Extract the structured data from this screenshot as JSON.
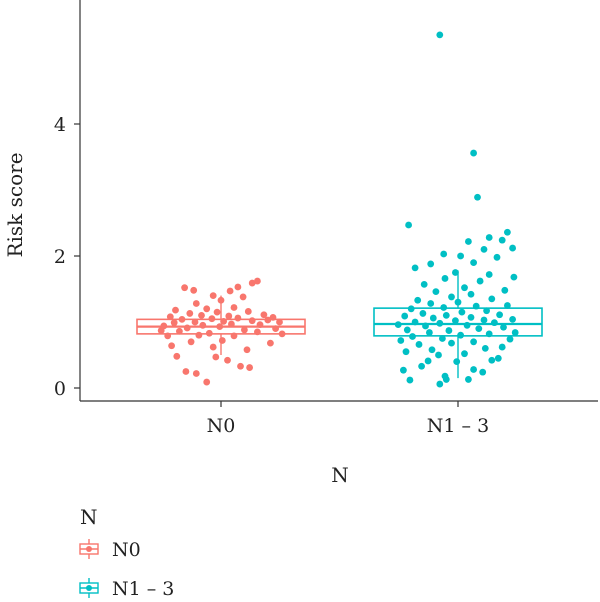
{
  "chart_data": {
    "type": "boxplot",
    "title": "",
    "xlabel": "N",
    "ylabel": "Risk score",
    "categories": [
      "N0",
      "N1 – 3"
    ],
    "y_ticks": [
      0,
      2,
      4
    ],
    "ylim": [
      -0.2,
      5.9
    ],
    "grid": false,
    "legend": {
      "title": "N",
      "position": "bottom-left",
      "entries": [
        "N0",
        "N1 – 3"
      ]
    },
    "colors": {
      "N0": "#F8766D",
      "N1 – 3": "#00BFC4"
    },
    "series": [
      {
        "name": "N0",
        "box": {
          "q1": 0.82,
          "median": 0.93,
          "q3": 1.04,
          "whisker_low": 0.5,
          "whisker_high": 1.4
        },
        "points": [
          [
            0.23,
            0.25
          ],
          [
            0.31,
            0.22
          ],
          [
            0.39,
            0.09
          ],
          [
            0.65,
            0.33
          ],
          [
            0.72,
            0.31
          ],
          [
            0.16,
            0.48
          ],
          [
            0.46,
            0.47
          ],
          [
            0.55,
            0.42
          ],
          [
            0.44,
            0.62
          ],
          [
            0.7,
            0.58
          ],
          [
            0.12,
            0.64
          ],
          [
            0.27,
            0.7
          ],
          [
            0.51,
            0.72
          ],
          [
            0.88,
            0.68
          ],
          [
            0.6,
            0.79
          ],
          [
            0.33,
            0.8
          ],
          [
            0.09,
            0.79
          ],
          [
            0.78,
            0.85
          ],
          [
            0.18,
            0.86
          ],
          [
            0.41,
            0.83
          ],
          [
            0.68,
            0.88
          ],
          [
            0.24,
            0.91
          ],
          [
            0.49,
            0.93
          ],
          [
            0.92,
            0.9
          ],
          [
            0.06,
            0.94
          ],
          [
            0.36,
            0.95
          ],
          [
            0.58,
            0.97
          ],
          [
            0.8,
            0.96
          ],
          [
            0.14,
            0.99
          ],
          [
            0.3,
            1.0
          ],
          [
            0.52,
            1.01
          ],
          [
            0.74,
            1.02
          ],
          [
            0.86,
            1.03
          ],
          [
            0.2,
            1.04
          ],
          [
            0.43,
            1.05
          ],
          [
            0.63,
            1.06
          ],
          [
            0.11,
            1.08
          ],
          [
            0.35,
            1.1
          ],
          [
            0.56,
            1.09
          ],
          [
            0.83,
            1.11
          ],
          [
            0.26,
            1.13
          ],
          [
            0.47,
            1.15
          ],
          [
            0.71,
            1.16
          ],
          [
            0.15,
            1.18
          ],
          [
            0.39,
            1.2
          ],
          [
            0.6,
            1.22
          ],
          [
            0.31,
            1.28
          ],
          [
            0.5,
            1.33
          ],
          [
            0.67,
            1.38
          ],
          [
            0.44,
            1.4
          ],
          [
            0.57,
            1.47
          ],
          [
            0.63,
            1.53
          ],
          [
            0.74,
            1.59
          ],
          [
            0.78,
            1.62
          ],
          [
            0.29,
            1.48
          ],
          [
            0.22,
            1.52
          ],
          [
            0.95,
            1.0
          ],
          [
            0.9,
            1.07
          ],
          [
            0.04,
            0.87
          ],
          [
            0.97,
            0.82
          ]
        ]
      },
      {
        "name": "N1 – 3",
        "box": {
          "q1": 0.79,
          "median": 0.97,
          "q3": 1.21,
          "whisker_low": 0.15,
          "whisker_high": 1.78
        },
        "points": [
          [
            0.36,
            0.06
          ],
          [
            0.41,
            0.13
          ],
          [
            0.13,
            0.12
          ],
          [
            0.58,
            0.13
          ],
          [
            0.4,
            0.18
          ],
          [
            0.08,
            0.27
          ],
          [
            0.62,
            0.28
          ],
          [
            0.69,
            0.24
          ],
          [
            0.22,
            0.33
          ],
          [
            0.27,
            0.41
          ],
          [
            0.49,
            0.4
          ],
          [
            0.76,
            0.42
          ],
          [
            0.81,
            0.45
          ],
          [
            0.35,
            0.5
          ],
          [
            0.1,
            0.55
          ],
          [
            0.3,
            0.58
          ],
          [
            0.55,
            0.52
          ],
          [
            0.71,
            0.6
          ],
          [
            0.84,
            0.62
          ],
          [
            0.2,
            0.66
          ],
          [
            0.45,
            0.68
          ],
          [
            0.62,
            0.7
          ],
          [
            0.06,
            0.72
          ],
          [
            0.38,
            0.75
          ],
          [
            0.9,
            0.74
          ],
          [
            0.15,
            0.78
          ],
          [
            0.52,
            0.8
          ],
          [
            0.74,
            0.82
          ],
          [
            0.28,
            0.84
          ],
          [
            0.94,
            0.84
          ],
          [
            0.11,
            0.88
          ],
          [
            0.43,
            0.87
          ],
          [
            0.66,
            0.9
          ],
          [
            0.85,
            0.92
          ],
          [
            0.25,
            0.94
          ],
          [
            0.57,
            0.95
          ],
          [
            0.04,
            0.96
          ],
          [
            0.36,
            0.98
          ],
          [
            0.78,
            0.99
          ],
          [
            0.17,
            1.0
          ],
          [
            0.48,
            1.02
          ],
          [
            0.7,
            1.03
          ],
          [
            0.92,
            1.04
          ],
          [
            0.31,
            1.06
          ],
          [
            0.6,
            1.07
          ],
          [
            0.09,
            1.09
          ],
          [
            0.41,
            1.1
          ],
          [
            0.82,
            1.11
          ],
          [
            0.23,
            1.13
          ],
          [
            0.53,
            1.15
          ],
          [
            0.72,
            1.17
          ],
          [
            0.14,
            1.2
          ],
          [
            0.39,
            1.22
          ],
          [
            0.64,
            1.24
          ],
          [
            0.88,
            1.25
          ],
          [
            0.29,
            1.28
          ],
          [
            0.5,
            1.3
          ],
          [
            0.19,
            1.33
          ],
          [
            0.76,
            1.35
          ],
          [
            0.45,
            1.38
          ],
          [
            0.6,
            1.42
          ],
          [
            0.33,
            1.46
          ],
          [
            0.86,
            1.48
          ],
          [
            0.55,
            1.52
          ],
          [
            0.24,
            1.57
          ],
          [
            0.67,
            1.62
          ],
          [
            0.4,
            1.66
          ],
          [
            0.93,
            1.68
          ],
          [
            0.74,
            1.72
          ],
          [
            0.48,
            1.75
          ],
          [
            0.17,
            1.82
          ],
          [
            0.29,
            1.88
          ],
          [
            0.62,
            1.9
          ],
          [
            0.8,
            1.98
          ],
          [
            0.52,
            2.0
          ],
          [
            0.39,
            2.03
          ],
          [
            0.7,
            2.1
          ],
          [
            0.92,
            2.12
          ],
          [
            0.58,
            2.22
          ],
          [
            0.84,
            2.24
          ],
          [
            0.74,
            2.28
          ],
          [
            0.88,
            2.36
          ],
          [
            0.12,
            2.47
          ],
          [
            0.65,
            2.89
          ],
          [
            0.62,
            3.56
          ],
          [
            0.36,
            5.35
          ]
        ]
      }
    ]
  }
}
